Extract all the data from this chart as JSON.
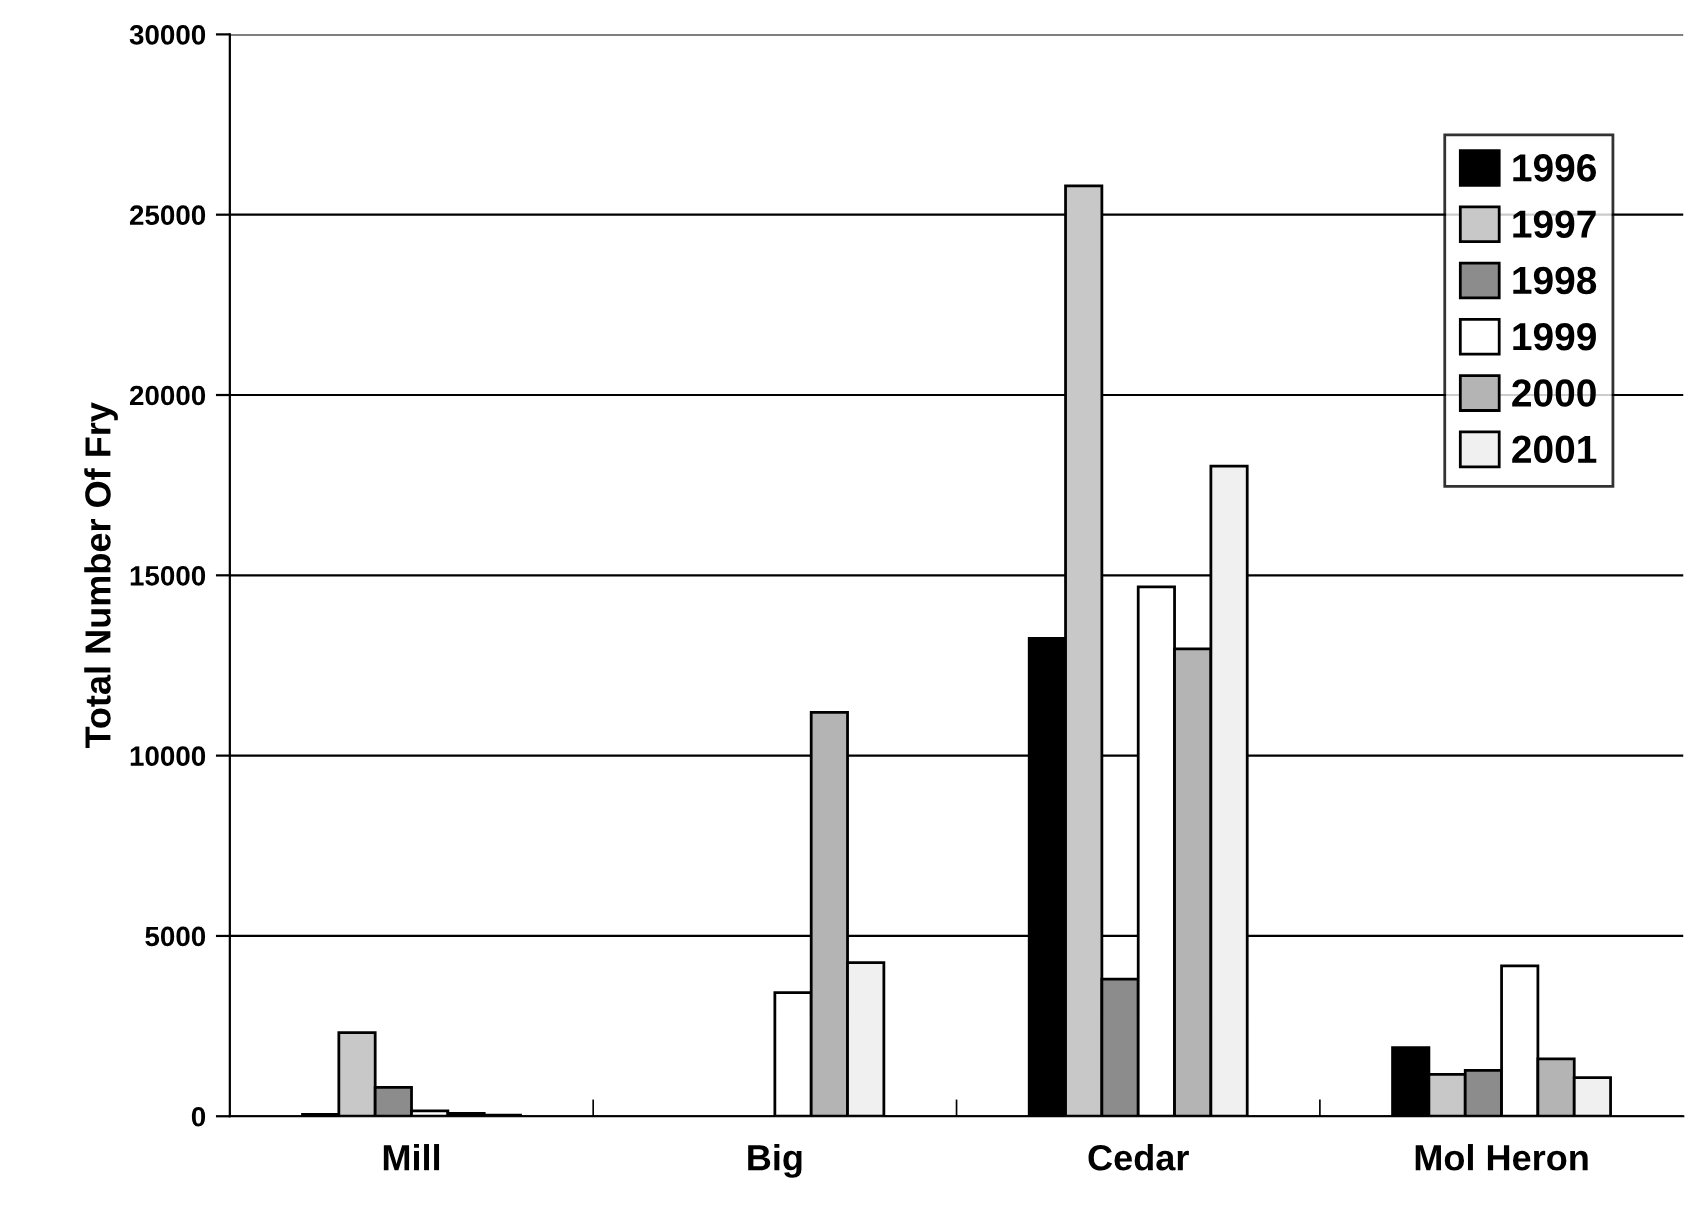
{
  "chart_data": {
    "type": "bar",
    "ylabel": "Total Number Of Fry",
    "categories": [
      "Mill",
      "Big",
      "Cedar",
      "Mol Heron"
    ],
    "series": [
      {
        "name": "1996",
        "color": "#000000",
        "values": [
          50,
          null,
          13250,
          1900
        ]
      },
      {
        "name": "1997",
        "color": "#c8c8c8",
        "values": [
          2320,
          null,
          25800,
          1160
        ]
      },
      {
        "name": "1998",
        "color": "#8c8c8c",
        "values": [
          800,
          null,
          3800,
          1270
        ]
      },
      {
        "name": "1999",
        "color": "#ffffff",
        "values": [
          150,
          3430,
          14680,
          4170
        ]
      },
      {
        "name": "2000",
        "color": "#b4b4b4",
        "values": [
          80,
          11200,
          12960,
          1590
        ]
      },
      {
        "name": "2001",
        "color": "#f0f0f0",
        "values": [
          30,
          4260,
          18030,
          1070
        ]
      }
    ],
    "ylim": [
      0,
      30000
    ],
    "yticks": [
      0,
      5000,
      10000,
      15000,
      20000,
      25000,
      30000
    ],
    "grid": "y",
    "legend": "top right"
  }
}
